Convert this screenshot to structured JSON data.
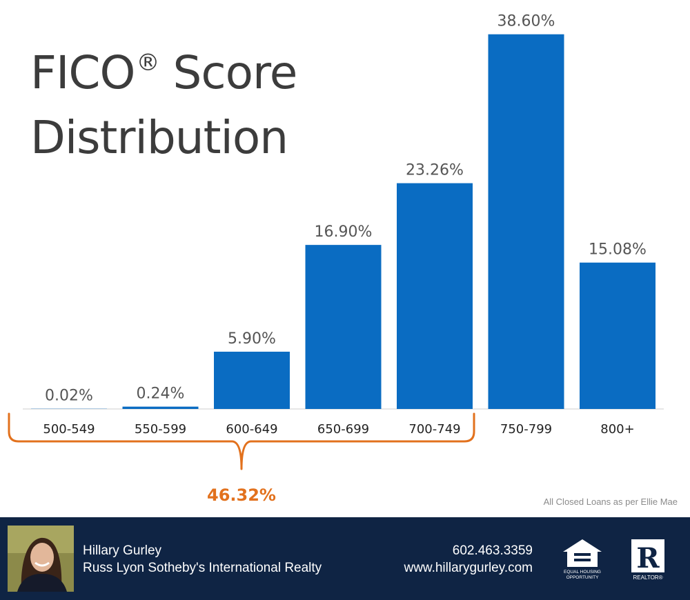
{
  "title": {
    "line1": "FICO",
    "reg": "®",
    "line1_rest": " Score",
    "line2": "Distribution"
  },
  "chart_data": {
    "type": "bar",
    "title": "FICO® Score Distribution",
    "categories": [
      "500-549",
      "550-599",
      "600-649",
      "650-699",
      "700-749",
      "750-799",
      "800+"
    ],
    "values": [
      0.02,
      0.24,
      5.9,
      16.9,
      23.26,
      38.6,
      15.08
    ],
    "value_labels": [
      "0.02%",
      "0.24%",
      "5.90%",
      "16.90%",
      "23.26%",
      "38.60%",
      "15.08%"
    ],
    "ylim": [
      0,
      40
    ],
    "xlabel": "",
    "ylabel": "",
    "grid": false,
    "bracket": {
      "from": "500-549",
      "to": "700-749",
      "total_label": "46.32%"
    }
  },
  "colors": {
    "bar": "#0a6cc2",
    "bracket": "#e2711d",
    "footer_bg": "#0f2444",
    "axis": "#cccccc"
  },
  "source_note": "All Closed Loans as per Ellie Mae",
  "footer": {
    "agent_name": "Hillary Gurley",
    "brokerage": "Russ Lyon Sotheby's International Realty",
    "phone": "602.463.3359",
    "website": "www.hillarygurley.com",
    "photo_icon": "agent-photo",
    "logos": [
      "equal-housing-opportunity-logo",
      "realtor-logo"
    ],
    "eho_text_1": "EQUAL HOUSING",
    "eho_text_2": "OPPORTUNITY",
    "realtor_text": "REALTOR®"
  }
}
